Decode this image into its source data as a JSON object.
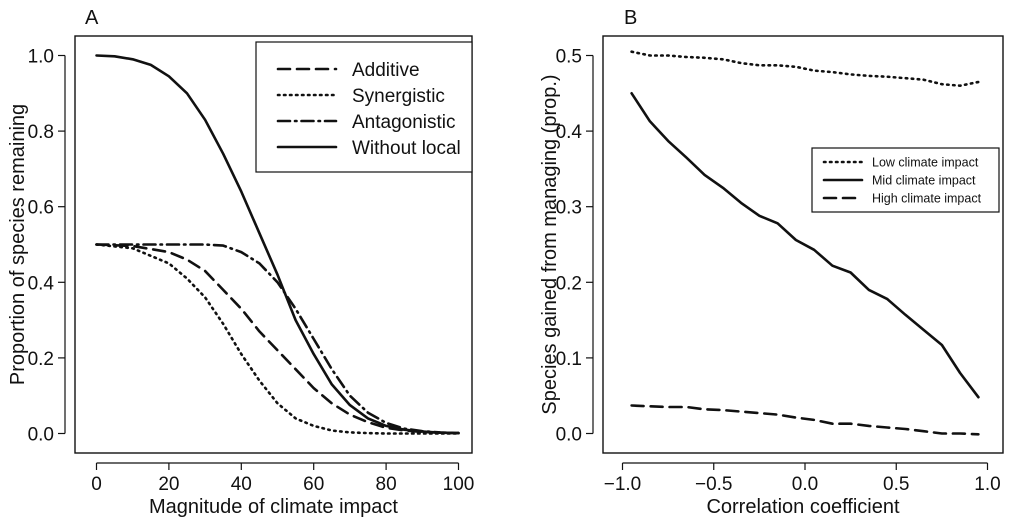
{
  "chart_data": [
    {
      "panel": "A",
      "type": "line",
      "xlabel": "Magnitude of climate impact",
      "ylabel": "Proportion of species remaining",
      "xlim": [
        0,
        100
      ],
      "ylim": [
        0,
        1
      ],
      "xticks": [
        0,
        20,
        40,
        60,
        80,
        100
      ],
      "yticks": [
        0.0,
        0.2,
        0.4,
        0.6,
        0.8,
        1.0
      ],
      "legend_position": "top-right",
      "series": [
        {
          "name": "Additive",
          "style": "dashed",
          "x": [
            0,
            10,
            20,
            25,
            30,
            35,
            40,
            45,
            50,
            55,
            60,
            65,
            70,
            75,
            80,
            85,
            90,
            95,
            100
          ],
          "y": [
            0.5,
            0.496,
            0.48,
            0.46,
            0.43,
            0.38,
            0.33,
            0.27,
            0.22,
            0.17,
            0.12,
            0.08,
            0.05,
            0.03,
            0.015,
            0.008,
            0.004,
            0.002,
            0.001
          ]
        },
        {
          "name": "Synergistic",
          "style": "dotted",
          "x": [
            0,
            10,
            20,
            25,
            30,
            35,
            40,
            45,
            50,
            55,
            60,
            65,
            70,
            75,
            80,
            90,
            100
          ],
          "y": [
            0.5,
            0.49,
            0.45,
            0.41,
            0.36,
            0.29,
            0.21,
            0.14,
            0.08,
            0.04,
            0.02,
            0.008,
            0.003,
            0.001,
            0.0,
            0.0,
            0.0
          ]
        },
        {
          "name": "Antagonistic",
          "style": "dotdash",
          "x": [
            0,
            10,
            20,
            25,
            30,
            35,
            40,
            45,
            50,
            55,
            60,
            65,
            70,
            75,
            80,
            85,
            90,
            95,
            100
          ],
          "y": [
            0.5,
            0.5,
            0.5,
            0.5,
            0.5,
            0.497,
            0.48,
            0.45,
            0.4,
            0.33,
            0.25,
            0.17,
            0.1,
            0.055,
            0.028,
            0.013,
            0.006,
            0.003,
            0.001
          ]
        },
        {
          "name": "Without local",
          "style": "solid",
          "x": [
            0,
            5,
            10,
            15,
            20,
            25,
            30,
            35,
            40,
            45,
            50,
            55,
            60,
            65,
            70,
            75,
            80,
            85,
            90,
            95,
            100
          ],
          "y": [
            1.0,
            0.998,
            0.99,
            0.975,
            0.945,
            0.9,
            0.83,
            0.74,
            0.64,
            0.53,
            0.42,
            0.3,
            0.21,
            0.13,
            0.075,
            0.04,
            0.02,
            0.01,
            0.005,
            0.002,
            0.001
          ]
        }
      ]
    },
    {
      "panel": "B",
      "type": "line",
      "xlabel": "Correlation coefficient",
      "ylabel": "Species gained from managing (prop.)",
      "xlim": [
        -1,
        1
      ],
      "ylim": [
        0,
        0.5
      ],
      "xticks": [
        -1.0,
        -0.5,
        0.0,
        0.5,
        1.0
      ],
      "yticks": [
        0.0,
        0.1,
        0.2,
        0.3,
        0.4,
        0.5
      ],
      "legend_position": "right",
      "series": [
        {
          "name": "Low climate impact",
          "style": "dotted",
          "x": [
            -0.95,
            -0.85,
            -0.75,
            -0.65,
            -0.55,
            -0.45,
            -0.35,
            -0.25,
            -0.15,
            -0.05,
            0.05,
            0.15,
            0.25,
            0.35,
            0.45,
            0.55,
            0.65,
            0.75,
            0.85,
            0.95
          ],
          "y": [
            0.505,
            0.5,
            0.5,
            0.498,
            0.497,
            0.495,
            0.49,
            0.487,
            0.487,
            0.485,
            0.48,
            0.478,
            0.475,
            0.473,
            0.472,
            0.47,
            0.468,
            0.462,
            0.46,
            0.465
          ]
        },
        {
          "name": "Mid climate impact",
          "style": "solid",
          "x": [
            -0.95,
            -0.85,
            -0.75,
            -0.65,
            -0.55,
            -0.45,
            -0.35,
            -0.25,
            -0.15,
            -0.05,
            0.05,
            0.15,
            0.25,
            0.35,
            0.45,
            0.55,
            0.65,
            0.75,
            0.85,
            0.95
          ],
          "y": [
            0.45,
            0.413,
            0.387,
            0.365,
            0.342,
            0.325,
            0.305,
            0.288,
            0.278,
            0.256,
            0.243,
            0.222,
            0.213,
            0.19,
            0.178,
            0.157,
            0.137,
            0.117,
            0.08,
            0.048
          ]
        },
        {
          "name": "High climate impact",
          "style": "dashed",
          "x": [
            -0.95,
            -0.85,
            -0.75,
            -0.65,
            -0.55,
            -0.45,
            -0.35,
            -0.25,
            -0.15,
            -0.05,
            0.05,
            0.15,
            0.25,
            0.35,
            0.45,
            0.55,
            0.65,
            0.75,
            0.85,
            0.95
          ],
          "y": [
            0.037,
            0.036,
            0.035,
            0.035,
            0.032,
            0.031,
            0.029,
            0.027,
            0.025,
            0.021,
            0.018,
            0.013,
            0.013,
            0.01,
            0.008,
            0.006,
            0.003,
            0.0,
            0.0,
            -0.001
          ]
        }
      ]
    }
  ]
}
